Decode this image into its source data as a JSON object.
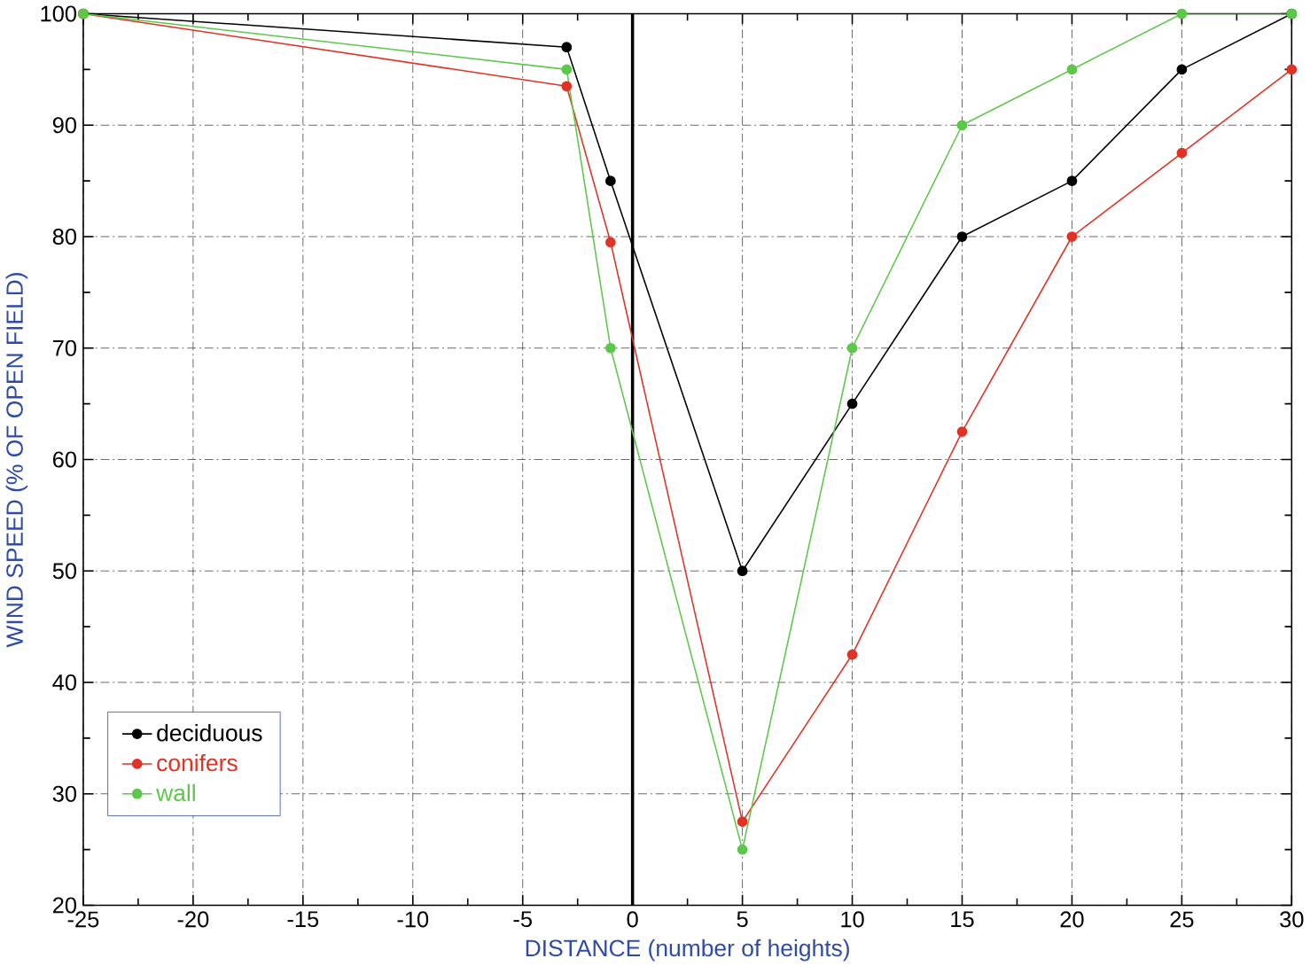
{
  "chart_data": {
    "type": "line",
    "xlabel": "DISTANCE (number of heights)",
    "ylabel": "WIND SPEED (% OF OPEN FIELD)",
    "x": [
      -25,
      -3,
      -1,
      5,
      10,
      15,
      20,
      25,
      30
    ],
    "series": [
      {
        "name": "deciduous",
        "color": "#000000",
        "values": [
          100,
          97,
          85,
          50,
          65,
          80,
          85,
          95,
          100
        ]
      },
      {
        "name": "conifers",
        "color": "#e03325",
        "values": [
          100,
          93.5,
          79.5,
          27.5,
          42.5,
          62.5,
          80,
          87.5,
          95
        ]
      },
      {
        "name": "wall",
        "color": "#5cc84a",
        "values": [
          100,
          95,
          70,
          25,
          70,
          90,
          95,
          100,
          100
        ]
      }
    ],
    "xlim": [
      -25,
      30
    ],
    "ylim": [
      20,
      100
    ],
    "xticks": [
      -25,
      -20,
      -15,
      -10,
      -5,
      0,
      5,
      10,
      15,
      20,
      25,
      30
    ],
    "yticks": [
      20,
      30,
      40,
      50,
      60,
      70,
      80,
      90,
      100
    ],
    "ref_lines": [
      {
        "axis": "x",
        "value": 0,
        "color": "#000000",
        "line_style": "solid"
      }
    ],
    "grid": true,
    "legend": "bottom left",
    "marker": "circle",
    "line_style": "solid"
  }
}
